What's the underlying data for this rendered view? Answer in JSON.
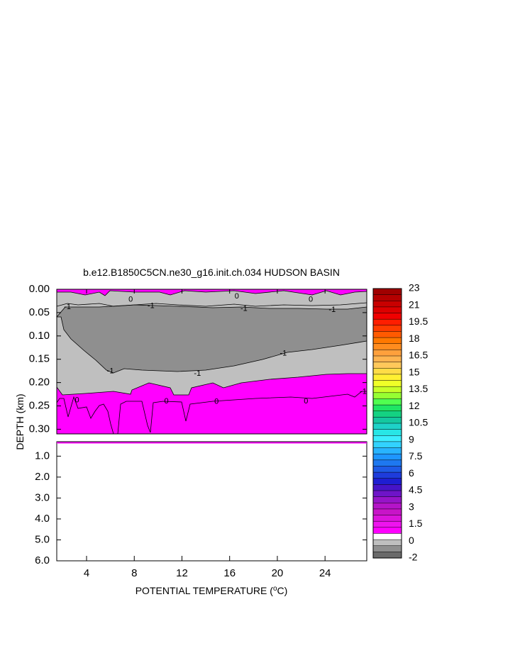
{
  "chart_data": {
    "type": "heatmap",
    "title": "b.e12.B1850C5CN.ne30_g16.init.ch.034 HUDSON BASIN",
    "xlabel": "POTENTIAL TEMPERATURE (",
    "xlabel_unit": "o",
    "xlabel_tail": "C)",
    "ylabel": "DEPTH (km)",
    "xlim": [
      1.5,
      27.5
    ],
    "x_ticks": [
      4,
      8,
      12,
      16,
      20,
      24
    ],
    "upper_panel": {
      "ylim": [
        0.0,
        0.31
      ],
      "y_ticks": [
        0.0,
        0.05,
        0.1,
        0.15,
        0.2,
        0.25,
        0.3
      ],
      "y_tick_labels": [
        "0.00",
        "0.05",
        "0.10",
        "0.15",
        "0.20",
        "0.25",
        "0.30"
      ]
    },
    "lower_panel": {
      "ylim": [
        0.31,
        6.0
      ],
      "y_ticks": [
        1.0,
        2.0,
        3.0,
        4.0,
        5.0,
        6.0
      ],
      "y_tick_labels": [
        "1.0",
        "2.0",
        "3.0",
        "4.0",
        "5.0",
        "6.0"
      ]
    },
    "contour_labels": [
      {
        "text": "0",
        "x": 7.7,
        "y": 0.022
      },
      {
        "text": "0",
        "x": 16.6,
        "y": 0.015
      },
      {
        "text": "0",
        "x": 22.8,
        "y": 0.022
      },
      {
        "text": "-1",
        "x": 2.4,
        "y": 0.038
      },
      {
        "text": "-1",
        "x": 9.4,
        "y": 0.036
      },
      {
        "text": "-1",
        "x": 17.2,
        "y": 0.042
      },
      {
        "text": "-1",
        "x": 24.6,
        "y": 0.044
      },
      {
        "text": "-1",
        "x": 20.5,
        "y": 0.138
      },
      {
        "text": "-1",
        "x": 13.3,
        "y": 0.181
      },
      {
        "text": "-1",
        "x": 6.0,
        "y": 0.176
      },
      {
        "text": "0",
        "x": 3.2,
        "y": 0.238
      },
      {
        "text": "0",
        "x": 10.7,
        "y": 0.24
      },
      {
        "text": "0",
        "x": 14.9,
        "y": 0.241
      },
      {
        "text": "0",
        "x": 22.4,
        "y": 0.24
      },
      {
        "text": "-1",
        "x": 27.2,
        "y": 0.22
      }
    ],
    "colorbar": {
      "labels": [
        "23",
        "21",
        "19.5",
        "18",
        "16.5",
        "15",
        "13.5",
        "12",
        "10.5",
        "9",
        "7.5",
        "6",
        "4.5",
        "3",
        "1.5",
        "0",
        "-2"
      ],
      "colors": [
        "#a00000",
        "#b40000",
        "#c80000",
        "#dc0000",
        "#f00000",
        "#ff1e00",
        "#ff3c00",
        "#ff5a00",
        "#ff7800",
        "#ff8c1e",
        "#ffa03c",
        "#ffb450",
        "#ffc85a",
        "#ffdc46",
        "#fff032",
        "#f0ff28",
        "#c8ff28",
        "#96ff32",
        "#50ff50",
        "#1ee664",
        "#14d282",
        "#14c8a0",
        "#1ed2c8",
        "#28e6e6",
        "#3ceeff",
        "#32d2ff",
        "#28b4ff",
        "#1e96ff",
        "#1e78f0",
        "#1e5ae6",
        "#1e3cdc",
        "#1e1ed2",
        "#4614c8",
        "#6e14c8",
        "#9614c8",
        "#b414c8",
        "#c814c8",
        "#dc14dc",
        "#ee14ee",
        "#ff00ff",
        "#ffffff",
        "#bfbfbf",
        "#8f8f8f",
        "#6a6a6a"
      ],
      "fill_colors": {
        "above_0": "#ff00ff",
        "zero_to_minus1": "#bfbfbf",
        "minus1_to_minus2": "#8f8f8f"
      }
    }
  }
}
